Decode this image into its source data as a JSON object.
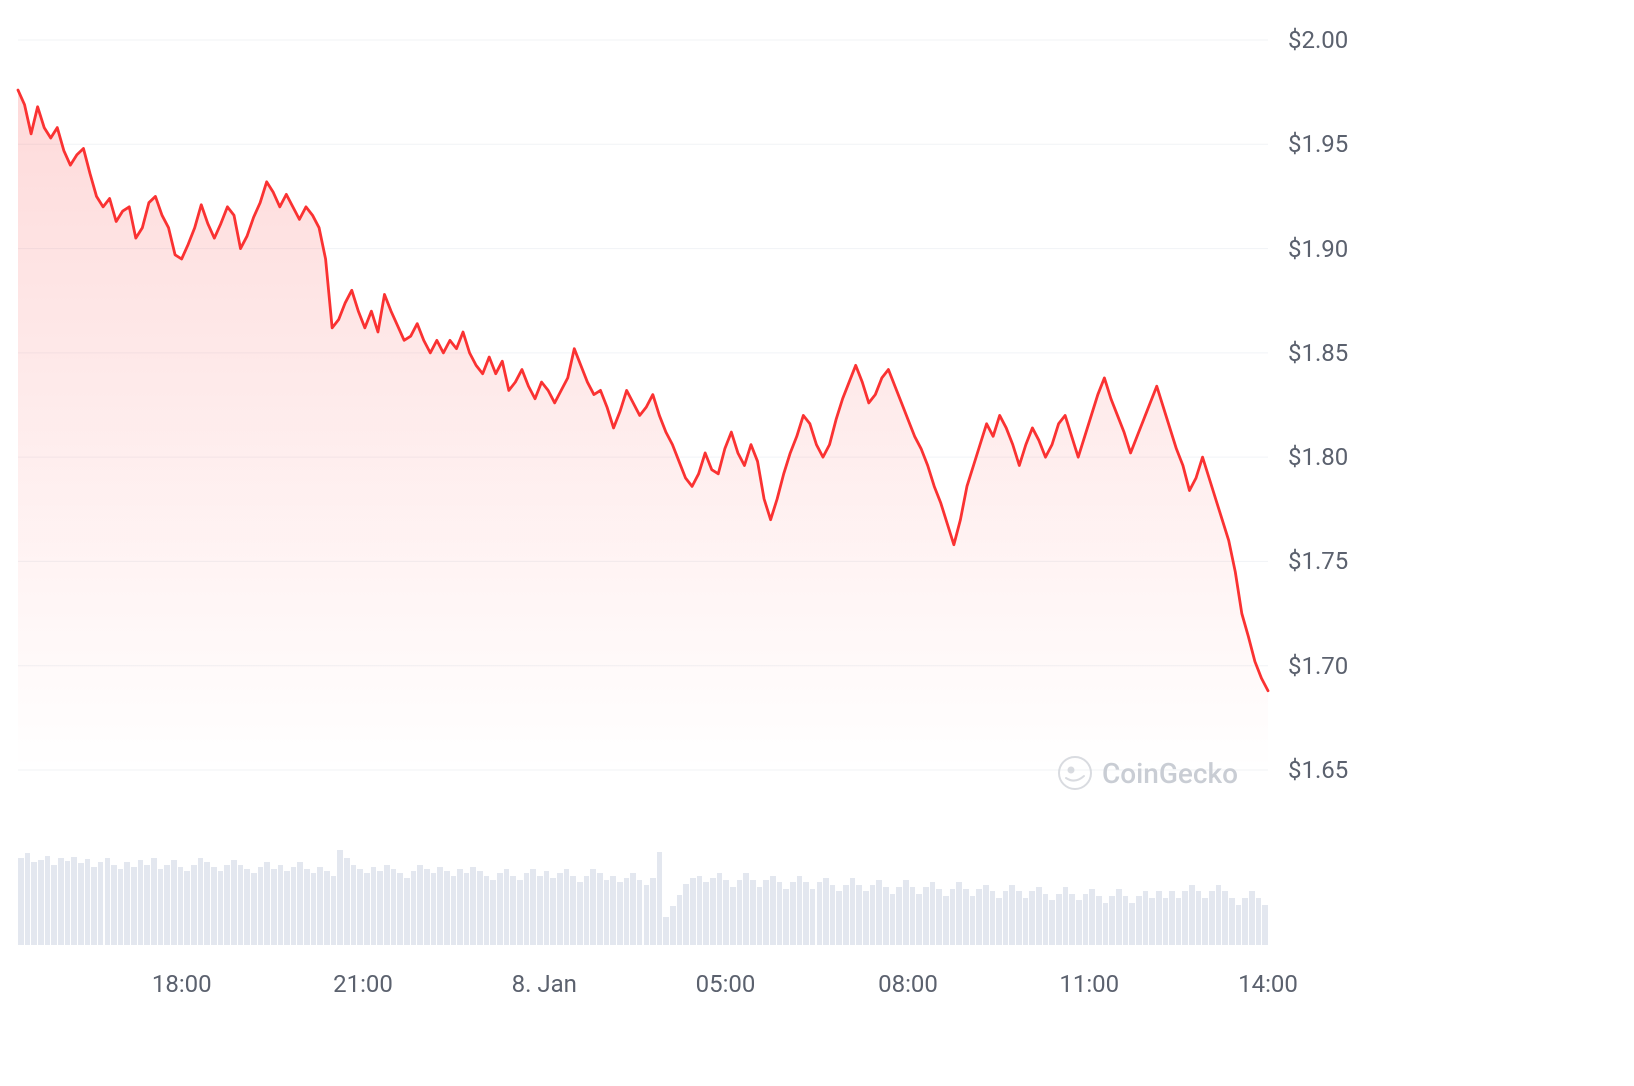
{
  "chart": {
    "type": "line-area",
    "line_color": "#fa3232",
    "line_width": 2.8,
    "area_gradient_top": "rgba(250,50,50,0.18)",
    "area_gradient_bottom": "rgba(250,50,50,0)",
    "background_color": "#ffffff",
    "grid_color": "#f1f3f6",
    "y_axis": {
      "label_color": "#5b616e",
      "label_fontsize": 24,
      "min": 1.65,
      "max": 2.0,
      "ticks": [
        "$2.00",
        "$1.95",
        "$1.90",
        "$1.85",
        "$1.80",
        "$1.75",
        "$1.70",
        "$1.65"
      ],
      "tick_values": [
        2.0,
        1.95,
        1.9,
        1.85,
        1.8,
        1.75,
        1.7,
        1.65
      ]
    },
    "x_axis": {
      "label_color": "#5b616e",
      "label_fontsize": 24,
      "ticks": [
        "18:00",
        "21:00",
        "8. Jan",
        "05:00",
        "08:00",
        "11:00",
        "14:00"
      ],
      "tick_positions": [
        0.131,
        0.276,
        0.421,
        0.566,
        0.712,
        0.857,
        1.0
      ]
    },
    "series": [
      1.976,
      1.969,
      1.955,
      1.968,
      1.958,
      1.953,
      1.958,
      1.947,
      1.94,
      1.945,
      1.948,
      1.936,
      1.925,
      1.92,
      1.924,
      1.913,
      1.918,
      1.92,
      1.905,
      1.91,
      1.922,
      1.925,
      1.916,
      1.91,
      1.897,
      1.895,
      1.902,
      1.91,
      1.921,
      1.912,
      1.905,
      1.912,
      1.92,
      1.916,
      1.9,
      1.906,
      1.915,
      1.922,
      1.932,
      1.927,
      1.92,
      1.926,
      1.92,
      1.914,
      1.92,
      1.916,
      1.91,
      1.895,
      1.862,
      1.866,
      1.874,
      1.88,
      1.87,
      1.862,
      1.87,
      1.86,
      1.878,
      1.87,
      1.863,
      1.856,
      1.858,
      1.864,
      1.856,
      1.85,
      1.856,
      1.85,
      1.856,
      1.852,
      1.86,
      1.85,
      1.844,
      1.84,
      1.848,
      1.84,
      1.846,
      1.832,
      1.836,
      1.842,
      1.834,
      1.828,
      1.836,
      1.832,
      1.826,
      1.832,
      1.838,
      1.852,
      1.844,
      1.836,
      1.83,
      1.832,
      1.824,
      1.814,
      1.822,
      1.832,
      1.826,
      1.82,
      1.824,
      1.83,
      1.82,
      1.812,
      1.806,
      1.798,
      1.79,
      1.786,
      1.792,
      1.802,
      1.794,
      1.792,
      1.804,
      1.812,
      1.802,
      1.796,
      1.806,
      1.798,
      1.78,
      1.77,
      1.78,
      1.792,
      1.802,
      1.81,
      1.82,
      1.816,
      1.806,
      1.8,
      1.806,
      1.818,
      1.828,
      1.836,
      1.844,
      1.836,
      1.826,
      1.83,
      1.838,
      1.842,
      1.834,
      1.826,
      1.818,
      1.81,
      1.804,
      1.796,
      1.786,
      1.778,
      1.768,
      1.758,
      1.77,
      1.786,
      1.796,
      1.806,
      1.816,
      1.81,
      1.82,
      1.814,
      1.806,
      1.796,
      1.806,
      1.814,
      1.808,
      1.8,
      1.806,
      1.816,
      1.82,
      1.81,
      1.8,
      1.81,
      1.82,
      1.83,
      1.838,
      1.828,
      1.82,
      1.812,
      1.802,
      1.81,
      1.818,
      1.826,
      1.834,
      1.824,
      1.814,
      1.804,
      1.796,
      1.784,
      1.79,
      1.8,
      1.79,
      1.78,
      1.77,
      1.76,
      1.745,
      1.725,
      1.714,
      1.702,
      1.694,
      1.688
    ]
  },
  "volume": {
    "bar_color": "#e3e7ef",
    "bar_gap": 1,
    "max_height": 95,
    "values": [
      78,
      82,
      74,
      76,
      80,
      72,
      78,
      75,
      79,
      73,
      77,
      70,
      74,
      78,
      72,
      68,
      74,
      70,
      76,
      72,
      78,
      68,
      72,
      76,
      70,
      66,
      72,
      78,
      74,
      70,
      66,
      72,
      76,
      72,
      68,
      64,
      70,
      74,
      68,
      72,
      66,
      70,
      74,
      68,
      64,
      70,
      66,
      62,
      85,
      78,
      72,
      68,
      64,
      70,
      66,
      72,
      68,
      64,
      60,
      66,
      72,
      68,
      64,
      70,
      66,
      62,
      68,
      64,
      70,
      66,
      62,
      58,
      64,
      68,
      62,
      58,
      64,
      68,
      62,
      66,
      60,
      64,
      68,
      62,
      56,
      62,
      68,
      64,
      58,
      62,
      56,
      60,
      64,
      58,
      54,
      60,
      83,
      25,
      35,
      45,
      55,
      60,
      62,
      56,
      60,
      64,
      58,
      52,
      58,
      64,
      58,
      52,
      58,
      62,
      56,
      50,
      56,
      62,
      56,
      50,
      56,
      60,
      54,
      48,
      54,
      60,
      54,
      48,
      54,
      58,
      52,
      46,
      52,
      58,
      52,
      46,
      52,
      56,
      50,
      44,
      50,
      56,
      50,
      44,
      50,
      54,
      48,
      42,
      48,
      54,
      48,
      42,
      48,
      52,
      46,
      40,
      46,
      52,
      46,
      40,
      46,
      50,
      44,
      38,
      44,
      50,
      44,
      38,
      44,
      48,
      42,
      48,
      42,
      48,
      42,
      48,
      54,
      48,
      42,
      48,
      54,
      48,
      42,
      36,
      42,
      48,
      42,
      36
    ]
  },
  "watermark": {
    "text": "CoinGecko",
    "color": "#c9cdd4",
    "fontsize": 28
  }
}
